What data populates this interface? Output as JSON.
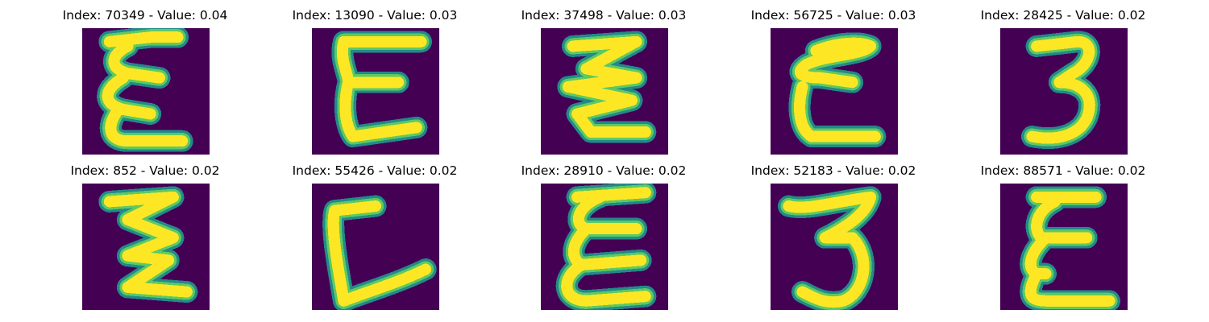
{
  "colormap": {
    "background": "#440154",
    "edge": "#21918c",
    "mid": "#5ec962",
    "stroke": "#fde725"
  },
  "panels": [
    {
      "title": "Index: 70349 - Value: 0.04",
      "glyph": "E-wavy"
    },
    {
      "title": "Index: 13090 - Value: 0.03",
      "glyph": "E-block"
    },
    {
      "title": "Index: 37498 - Value: 0.03",
      "glyph": "zigzag"
    },
    {
      "title": "Index: 56725 - Value: 0.03",
      "glyph": "E-round"
    },
    {
      "title": "Index: 28425 - Value: 0.02",
      "glyph": "three"
    },
    {
      "title": "Index: 852 - Value: 0.02",
      "glyph": "zigzag-thin"
    },
    {
      "title": "Index: 55426 - Value: 0.02",
      "glyph": "L"
    },
    {
      "title": "Index: 28910 - Value: 0.02",
      "glyph": "E-loopy"
    },
    {
      "title": "Index: 52183 - Value: 0.02",
      "glyph": "three-open"
    },
    {
      "title": "Index: 88571 - Value: 0.02",
      "glyph": "E-wavy2"
    }
  ]
}
